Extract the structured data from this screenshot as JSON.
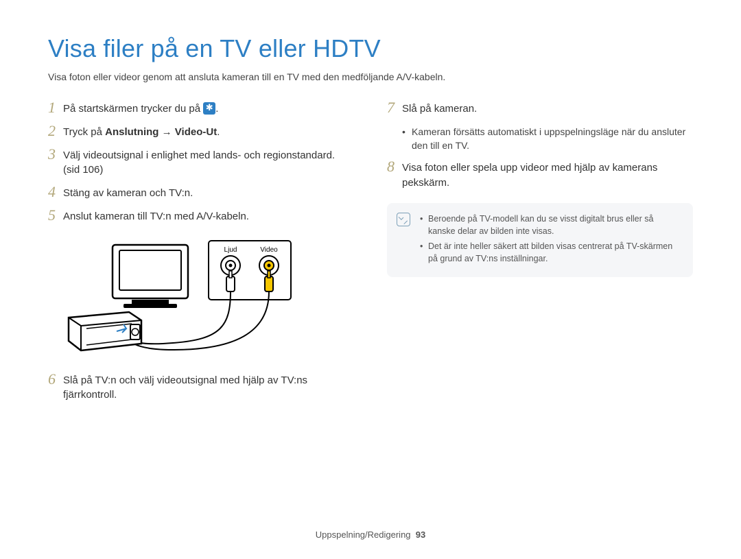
{
  "title": "Visa filer på en TV eller HDTV",
  "subtitle": "Visa foton eller videor genom att ansluta kameran till en TV med den medföljande A/V-kabeln.",
  "left": {
    "steps": [
      {
        "n": "1",
        "html": "På startskärmen trycker du på {icon}."
      },
      {
        "n": "2",
        "html": "Tryck på <b>Anslutning</b> → <b>Video-Ut</b>."
      },
      {
        "n": "3",
        "html": "Välj videoutsignal i enlighet med lands- och regionstandard. (sid 106)"
      },
      {
        "n": "4",
        "html": "Stäng av kameran och TV:n."
      },
      {
        "n": "5",
        "html": "Anslut kameran till TV:n med A/V-kabeln."
      }
    ],
    "diagram": {
      "labels": {
        "audio": "Ljud",
        "video": "Video"
      },
      "colors": {
        "stroke": "#000000",
        "audio_plug": "#ffffff",
        "video_plug": "#f6c700",
        "camera_body": "#ffffff",
        "camera_shadow": "#000000",
        "tv_screen": "#ffffff"
      }
    },
    "step6": {
      "n": "6",
      "text": "Slå på TV:n och välj videoutsignal med hjälp av TV:ns fjärrkontroll."
    }
  },
  "right": {
    "step7": {
      "n": "7",
      "text": "Slå på kameran."
    },
    "step7_sub": [
      "Kameran försätts automatiskt i uppspelningsläge när du ansluter den till en TV."
    ],
    "step8": {
      "n": "8",
      "text": "Visa foton eller spela upp videor med hjälp av kamerans pekskärm."
    },
    "notes": [
      "Beroende på TV-modell kan du se visst digitalt brus eller så kanske delar av bilden inte visas.",
      "Det är inte heller säkert att bilden visas centrerat på TV-skärmen på grund av TV:ns inställningar."
    ]
  },
  "footer": {
    "section": "Uppspelning/Redigering",
    "page": "93"
  },
  "colors": {
    "title": "#2d7fc4",
    "step_number": "#b2a77a",
    "note_bg": "#f5f6f8",
    "note_icon": "#7da0b8",
    "icon_bg": "#2d7fc4",
    "text": "#333333"
  }
}
